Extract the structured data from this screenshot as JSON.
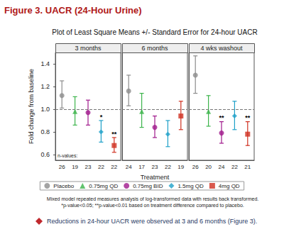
{
  "header": "Figure 3. UACR (24-Hour Urine)",
  "chart_data": {
    "type": "scatter",
    "title": "Plot of Least Square Means +/- Standard Error for 24-hour UACR",
    "xlabel": "Treatment",
    "ylabel": "Fold change from baseline",
    "panels": [
      "3 months",
      "6 months",
      "4 wks washout"
    ],
    "n_label": "n-values:",
    "ylim": [
      0.55,
      1.5
    ],
    "yticks": [
      0.6,
      0.8,
      {
        "value": 1,
        "label": "1.0"
      },
      1.2,
      1.4
    ],
    "reference_line": 1,
    "grid": false,
    "legend": "bottom",
    "series": [
      {
        "name": "Placebo",
        "color": "#8c8c8c",
        "marker": "circle",
        "values": [
          1.12,
          1.16,
          1.3
        ],
        "lower": [
          1.01,
          1.03,
          1.14
        ],
        "upper": [
          1.25,
          1.3,
          1.47
        ],
        "n_values": [
          26,
          24,
          26
        ],
        "significance": [
          null,
          null,
          null
        ]
      },
      {
        "name": "0.75mg QD",
        "color": "#3cb44b",
        "marker": "triangle",
        "values": [
          0.98,
          0.98,
          0.98
        ],
        "lower": [
          0.86,
          0.84,
          0.85
        ],
        "upper": [
          1.11,
          1.14,
          1.12
        ],
        "n_values": [
          19,
          17,
          20
        ],
        "significance": [
          null,
          null,
          null
        ]
      },
      {
        "name": "0.75mg BID",
        "color": "#a0198c",
        "marker": "circle",
        "values": [
          0.97,
          0.84,
          0.79
        ],
        "lower": [
          0.86,
          0.75,
          0.7
        ],
        "upper": [
          1.08,
          0.94,
          0.89
        ],
        "n_values": [
          23,
          23,
          24
        ],
        "significance": [
          null,
          null,
          "**"
        ]
      },
      {
        "name": "1.5mg QD",
        "color": "#1ea0c8",
        "marker": "diamond",
        "values": [
          0.8,
          0.78,
          0.94
        ],
        "lower": [
          0.71,
          0.67,
          0.82
        ],
        "upper": [
          0.9,
          0.9,
          1.07
        ],
        "n_values": [
          22,
          22,
          22
        ],
        "significance": [
          "*",
          null,
          null
        ]
      },
      {
        "name": "4mg QD",
        "color": "#d03020",
        "marker": "square",
        "values": [
          0.68,
          0.94,
          0.78
        ],
        "lower": [
          0.62,
          0.82,
          0.68
        ],
        "upper": [
          0.75,
          1.07,
          0.89
        ],
        "n_values": [
          22,
          19,
          21
        ],
        "significance": [
          "**",
          null,
          "**"
        ]
      }
    ]
  },
  "notes": [
    "Mixed model repeated measures analysis of log-transformed data with results back transformed.",
    "*p-value<0.05; **p-value<0.01 based on treatment difference compared to placebo."
  ],
  "bullet": "Reductions in 24-hour UACR were observed at 3 and 6 months (Figure 3)."
}
